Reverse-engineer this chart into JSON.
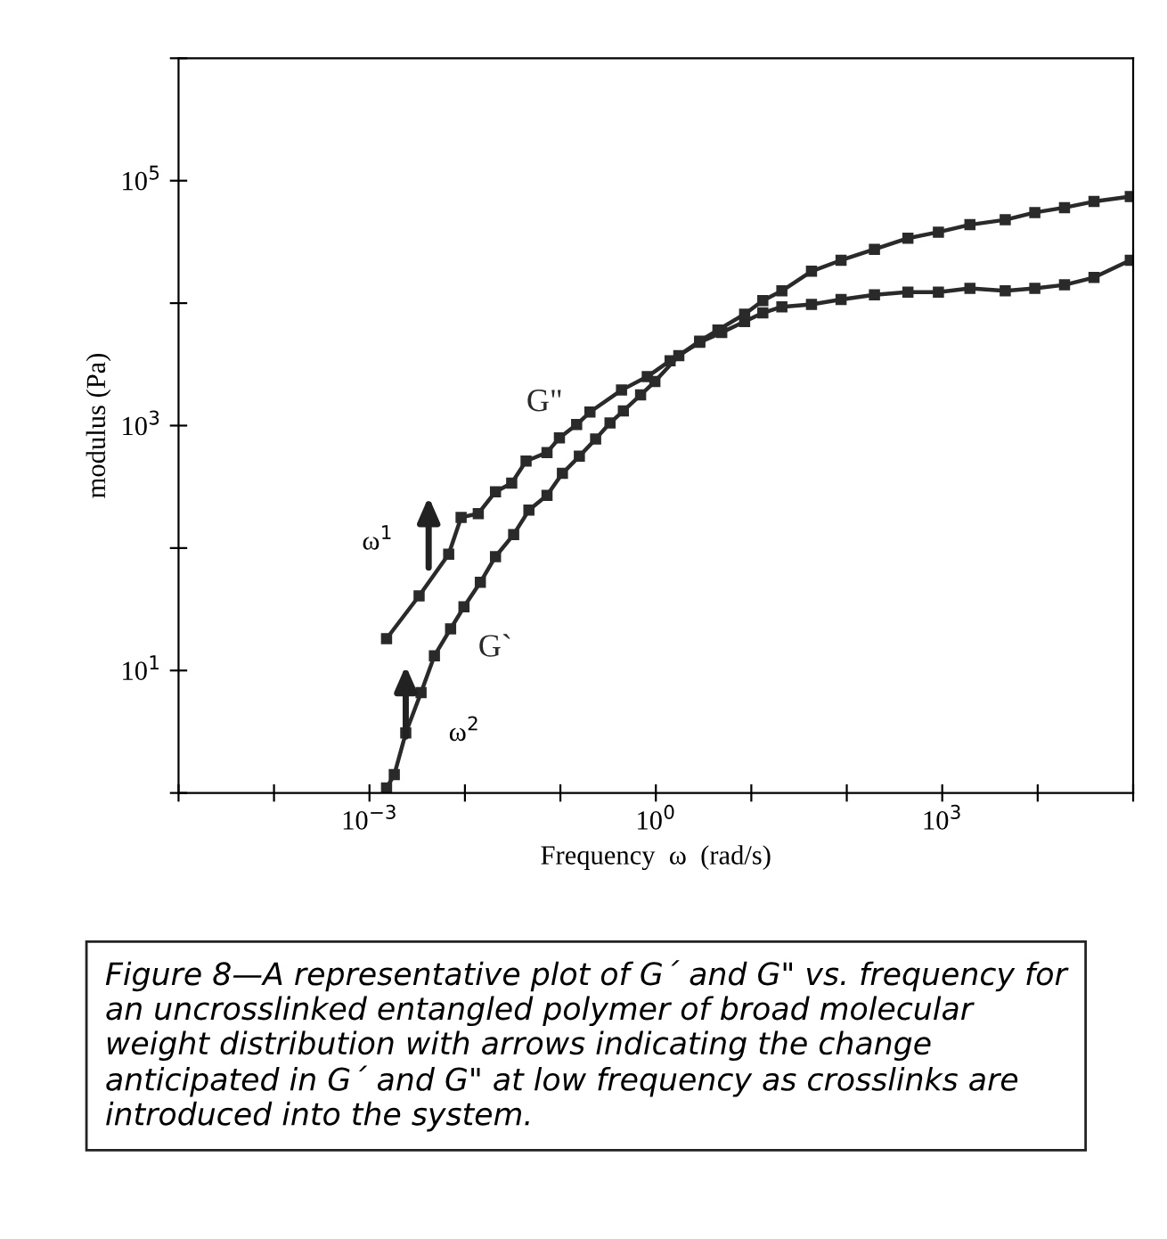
{
  "chart_data": {
    "type": "line",
    "xlabel": "Frequency  ω  (rad/s)",
    "ylabel": "modulus (Pa)",
    "log": "xy",
    "marker": "square",
    "line_style": "solid",
    "grid": false,
    "legend": false,
    "xlim": [
      1e-05,
      100000
    ],
    "ylim": [
      1,
      1000000
    ],
    "xticks": [
      {
        "value": 1e-05,
        "label": null
      },
      {
        "value": 0.0001,
        "label": null
      },
      {
        "value": 0.001,
        "label": "10$^{−3}$"
      },
      {
        "value": 0.01,
        "label": null
      },
      {
        "value": 0.1,
        "label": null
      },
      {
        "value": 1,
        "label": "10$^{0}$"
      },
      {
        "value": 10,
        "label": null
      },
      {
        "value": 100,
        "label": null
      },
      {
        "value": 1000,
        "label": "10$^{3}$"
      },
      {
        "value": 10000,
        "label": null
      },
      {
        "value": 100000,
        "label": null
      }
    ],
    "yticks": [
      {
        "value": 1,
        "label": null
      },
      {
        "value": 10,
        "label": "10$^{1}$"
      },
      {
        "value": 100,
        "label": null
      },
      {
        "value": 1000,
        "label": "10$^{3}$"
      },
      {
        "value": 10000,
        "label": null
      },
      {
        "value": 100000,
        "label": "10$^{5}$"
      },
      {
        "value": 1000000,
        "label": null
      }
    ],
    "series": [
      {
        "name": "G\"",
        "color": "#2a2a2a",
        "x": [
          0.00151,
          0.00331,
          0.00676,
          0.00912,
          0.0138,
          0.0209,
          0.0309,
          0.0437,
          0.0724,
          0.0977,
          0.148,
          0.204,
          0.437,
          0.813,
          1.41,
          2.88,
          4.9,
          8.51,
          13.2,
          20.9,
          42.7,
          87.1,
          195,
          437,
          912,
          1950,
          4570,
          9330,
          19100,
          38900,
          93300
        ],
        "values": [
          18.2,
          40.7,
          89.1,
          178,
          191,
          288,
          339,
          513,
          603,
          794,
          1020,
          1290,
          1950,
          2510,
          3390,
          4790,
          5750,
          7080,
          8320,
          9330,
          9770,
          10700,
          11700,
          12300,
          12300,
          13200,
          12600,
          13200,
          14100,
          16200,
          22400
        ]
      },
      {
        "name": "G`",
        "color": "#2a2a2a",
        "x": [
          0.00151,
          0.00182,
          0.0024,
          0.00347,
          0.00479,
          0.00708,
          0.00977,
          0.0145,
          0.0209,
          0.0324,
          0.0468,
          0.0724,
          0.105,
          0.158,
          0.234,
          0.331,
          0.457,
          0.692,
          0.977,
          1.74,
          2.88,
          4.47,
          8.51,
          13.2,
          20.9,
          42.7,
          87.1,
          195,
          437,
          912,
          1950,
          4570,
          9330,
          19100,
          38900,
          93300
        ],
        "values": [
          1.1,
          1.41,
          3.09,
          6.61,
          13.2,
          21.9,
          33.1,
          52.5,
          85.1,
          129,
          204,
          269,
          407,
          562,
          776,
          1050,
          1320,
          1780,
          2290,
          3720,
          4900,
          6030,
          8130,
          10500,
          12600,
          18200,
          22400,
          27500,
          33900,
          38000,
          43700,
          47900,
          55000,
          60300,
          67600,
          74100
        ]
      }
    ],
    "annotations": [
      "ω$^{1}$",
      "ω$^{2}$",
      "Figure 8—A representative plot of G´ and G\" vs. frequency for an uncrosslinked entangled polymer of broad molecular weight distribution with arrows indicating the change anticipated in G´ and G\" at low frequency as crosslinks are introduced into the system."
    ]
  }
}
